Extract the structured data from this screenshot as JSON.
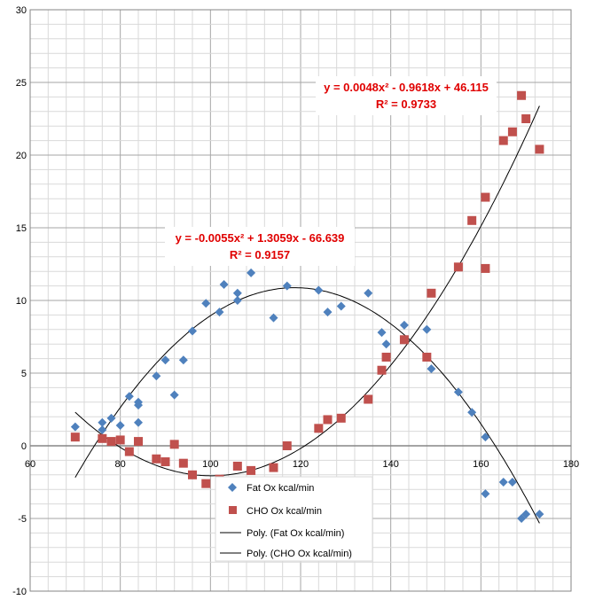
{
  "chart_data": {
    "type": "scatter",
    "title": "",
    "xlabel": "",
    "ylabel": "",
    "xlim": [
      60,
      180
    ],
    "ylim": [
      -10,
      30
    ],
    "x_ticks": [
      60,
      80,
      100,
      120,
      140,
      160,
      180
    ],
    "y_ticks": [
      -10,
      -5,
      0,
      5,
      10,
      15,
      20,
      25,
      30
    ],
    "grid": true,
    "legend_position": "bottom-center",
    "series": [
      {
        "name": "Fat Ox kcal/min",
        "color": "#4f81bd",
        "marker": "diamond",
        "points": [
          [
            70,
            1.3
          ],
          [
            76,
            1.1
          ],
          [
            76,
            1.6
          ],
          [
            78,
            1.9
          ],
          [
            80,
            1.4
          ],
          [
            82,
            3.4
          ],
          [
            84,
            1.6
          ],
          [
            84,
            2.8
          ],
          [
            84,
            3.0
          ],
          [
            88,
            4.8
          ],
          [
            90,
            5.9
          ],
          [
            92,
            3.5
          ],
          [
            94,
            5.9
          ],
          [
            96,
            7.9
          ],
          [
            99,
            9.8
          ],
          [
            102,
            9.2
          ],
          [
            103,
            11.1
          ],
          [
            106,
            10.0
          ],
          [
            106,
            10.5
          ],
          [
            109,
            11.9
          ],
          [
            114,
            8.8
          ],
          [
            117,
            11.0
          ],
          [
            124,
            10.7
          ],
          [
            126,
            9.2
          ],
          [
            129,
            9.6
          ],
          [
            135,
            10.5
          ],
          [
            138,
            7.8
          ],
          [
            139,
            7.0
          ],
          [
            143,
            8.3
          ],
          [
            148,
            8.0
          ],
          [
            149,
            5.3
          ],
          [
            155,
            3.7
          ],
          [
            158,
            2.3
          ],
          [
            161,
            0.6
          ],
          [
            161,
            -3.3
          ],
          [
            165,
            -2.5
          ],
          [
            167,
            -2.5
          ],
          [
            169,
            -5.0
          ],
          [
            170,
            -4.7
          ],
          [
            173,
            -4.7
          ]
        ]
      },
      {
        "name": "CHO Ox kcal/min",
        "color": "#c0504d",
        "marker": "square",
        "points": [
          [
            70,
            0.6
          ],
          [
            76,
            0.5
          ],
          [
            78,
            0.3
          ],
          [
            80,
            0.4
          ],
          [
            82,
            -0.4
          ],
          [
            84,
            0.3
          ],
          [
            88,
            -0.9
          ],
          [
            90,
            -1.1
          ],
          [
            92,
            0.1
          ],
          [
            94,
            -1.2
          ],
          [
            96,
            -2.0
          ],
          [
            99,
            -2.6
          ],
          [
            102,
            -2.3
          ],
          [
            106,
            -1.4
          ],
          [
            109,
            -1.7
          ],
          [
            114,
            -1.5
          ],
          [
            117,
            0.0
          ],
          [
            124,
            1.2
          ],
          [
            126,
            1.8
          ],
          [
            129,
            1.9
          ],
          [
            135,
            3.2
          ],
          [
            138,
            5.2
          ],
          [
            139,
            6.1
          ],
          [
            143,
            7.3
          ],
          [
            148,
            6.1
          ],
          [
            149,
            10.5
          ],
          [
            155,
            12.3
          ],
          [
            158,
            15.5
          ],
          [
            161,
            17.1
          ],
          [
            161,
            12.2
          ],
          [
            165,
            21.0
          ],
          [
            167,
            21.6
          ],
          [
            169,
            24.1
          ],
          [
            170,
            22.5
          ],
          [
            173,
            20.4
          ]
        ]
      }
    ],
    "trendlines": [
      {
        "name": "Poly. (Fat Ox kcal/min)",
        "coefficients": [
          -0.0055,
          1.3059,
          -66.639
        ],
        "x_range": [
          70,
          173
        ],
        "equation": "y = -0.0055x² + 1.3059x - 66.639",
        "r2": "R² = 0.9157"
      },
      {
        "name": "Poly. (CHO Ox kcal/min)",
        "coefficients": [
          0.0048,
          -0.9618,
          46.115
        ],
        "x_range": [
          70,
          173
        ],
        "equation": "y = 0.0048x² - 0.9618x + 46.115",
        "r2": "R² = 0.9733"
      }
    ]
  }
}
